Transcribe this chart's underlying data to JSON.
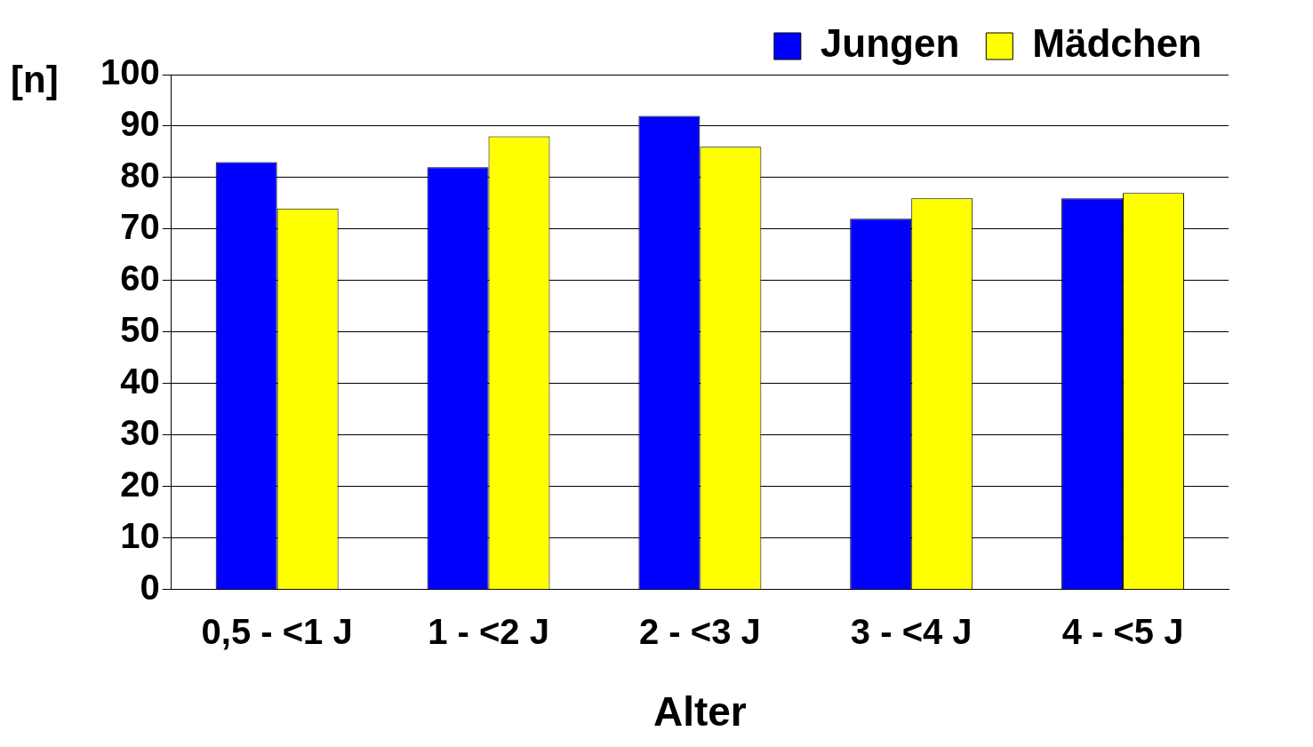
{
  "chart_data": {
    "type": "bar",
    "xlabel": "Alter",
    "ylabel": "[n]",
    "categories": [
      "0,5 - <1 J",
      "1 - <2 J",
      "2 - <3 J",
      "3 - <4 J",
      "4 - <5 J"
    ],
    "series": [
      {
        "name": "Jungen",
        "color": "#0000ff",
        "values": [
          83,
          82,
          92,
          72,
          76
        ]
      },
      {
        "name": "Mädchen",
        "color": "#ffff00",
        "values": [
          74,
          88,
          86,
          76,
          77
        ]
      }
    ],
    "ylim": [
      0,
      100
    ],
    "yticks": [
      0,
      10,
      20,
      30,
      40,
      50,
      60,
      70,
      80,
      90,
      100
    ],
    "grid": "y",
    "legend": "top right"
  }
}
